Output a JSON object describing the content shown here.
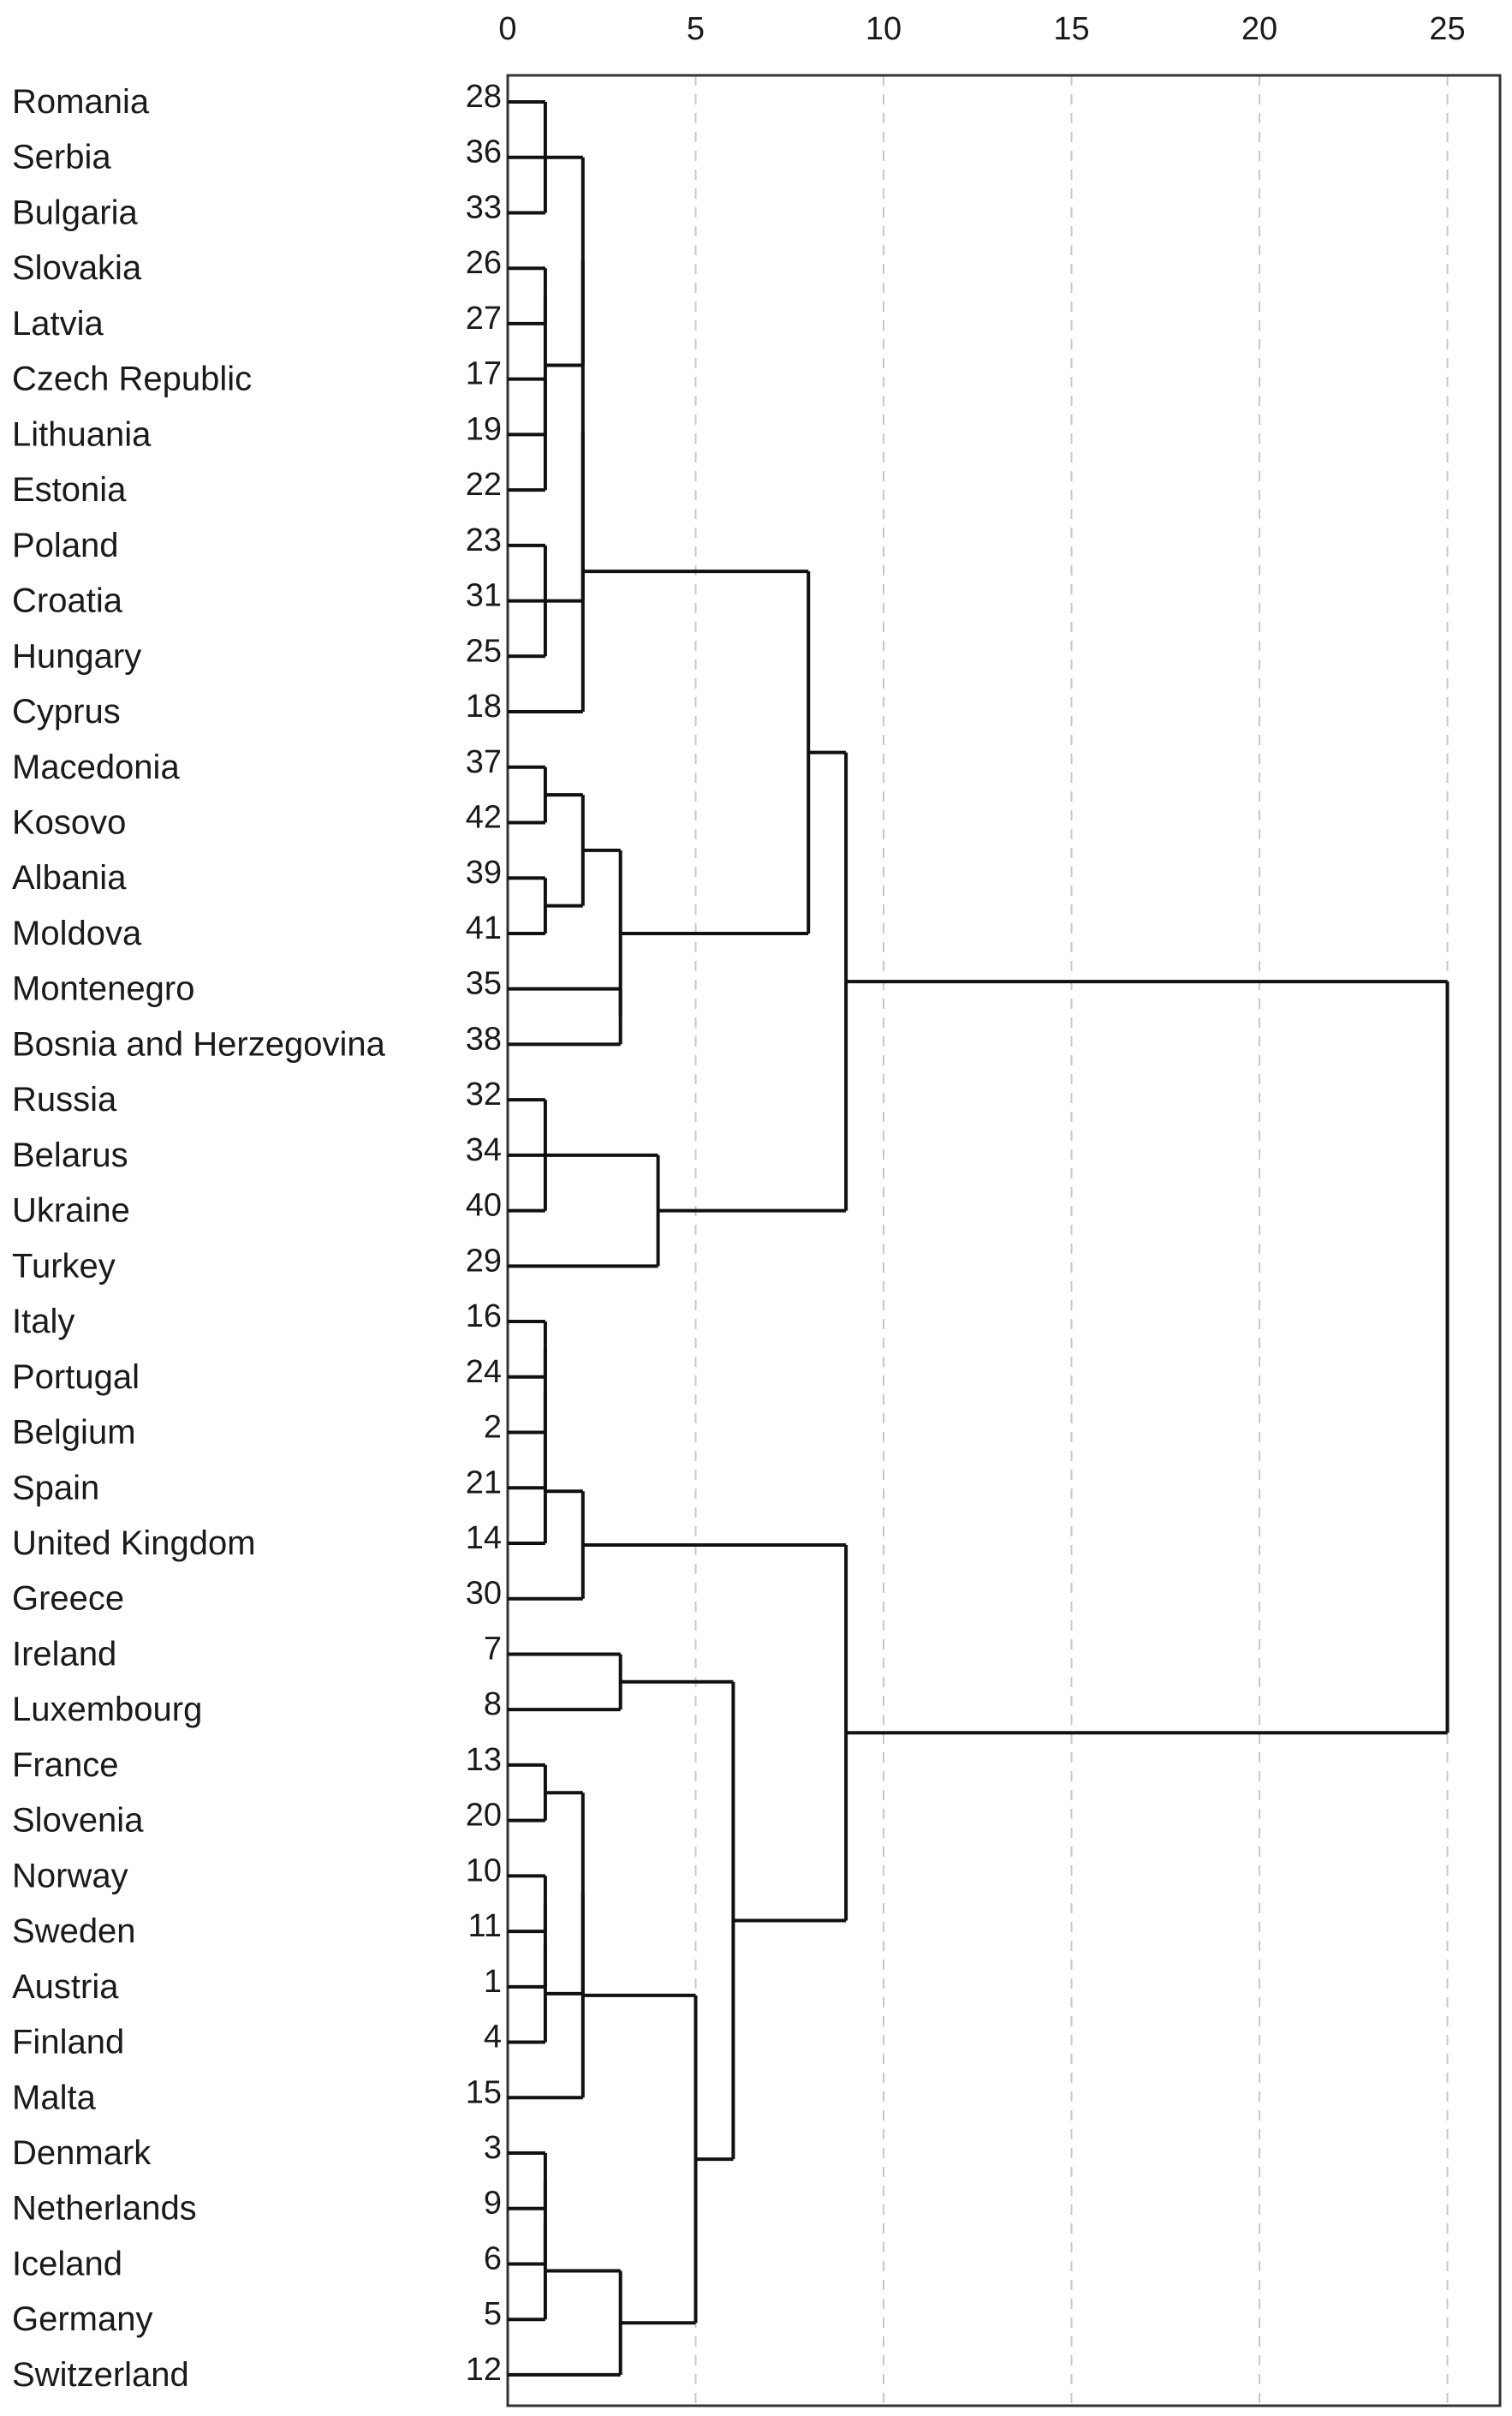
{
  "chart_data": {
    "type": "dendrogram",
    "title": "",
    "xlabel": "",
    "ylabel": "",
    "xlim": [
      0,
      26.4
    ],
    "x_ticks": [
      0,
      5,
      10,
      15,
      20,
      25
    ],
    "grid": "vertical-dashed",
    "leaves": [
      {
        "label": "Romania",
        "case": "28"
      },
      {
        "label": "Serbia",
        "case": "36"
      },
      {
        "label": "Bulgaria",
        "case": "33"
      },
      {
        "label": "Slovakia",
        "case": "26"
      },
      {
        "label": "Latvia",
        "case": "27"
      },
      {
        "label": "Czech Republic",
        "case": "17"
      },
      {
        "label": "Lithuania",
        "case": "19"
      },
      {
        "label": "Estonia",
        "case": "22"
      },
      {
        "label": "Poland",
        "case": "23"
      },
      {
        "label": "Croatia",
        "case": "31"
      },
      {
        "label": "Hungary",
        "case": "25"
      },
      {
        "label": "Cyprus",
        "case": "18"
      },
      {
        "label": "Macedonia",
        "case": "37"
      },
      {
        "label": "Kosovo",
        "case": "42"
      },
      {
        "label": "Albania",
        "case": "39"
      },
      {
        "label": "Moldova",
        "case": "41"
      },
      {
        "label": "Montenegro",
        "case": "35"
      },
      {
        "label": "Bosnia and Herzegovina",
        "case": "38"
      },
      {
        "label": "Russia",
        "case": "32"
      },
      {
        "label": "Belarus",
        "case": "34"
      },
      {
        "label": "Ukraine",
        "case": "40"
      },
      {
        "label": "Turkey",
        "case": "29"
      },
      {
        "label": "Italy",
        "case": "16"
      },
      {
        "label": "Portugal",
        "case": "24"
      },
      {
        "label": "Belgium",
        "case": "2"
      },
      {
        "label": "Spain",
        "case": "21"
      },
      {
        "label": "United Kingdom",
        "case": "14"
      },
      {
        "label": "Greece",
        "case": "30"
      },
      {
        "label": "Ireland",
        "case": "7"
      },
      {
        "label": "Luxembourg",
        "case": "8"
      },
      {
        "label": "France",
        "case": "13"
      },
      {
        "label": "Slovenia",
        "case": "20"
      },
      {
        "label": "Norway",
        "case": "10"
      },
      {
        "label": "Sweden",
        "case": "11"
      },
      {
        "label": "Austria",
        "case": "1"
      },
      {
        "label": "Finland",
        "case": "4"
      },
      {
        "label": "Malta",
        "case": "15"
      },
      {
        "label": "Denmark",
        "case": "3"
      },
      {
        "label": "Netherlands",
        "case": "9"
      },
      {
        "label": "Iceland",
        "case": "6"
      },
      {
        "label": "Germany",
        "case": "5"
      },
      {
        "label": "Switzerland",
        "case": "12"
      }
    ],
    "merges": [
      {
        "id": "m1",
        "children": [
          "Romania",
          "Bulgaria"
        ],
        "height": 1
      },
      {
        "id": "m2",
        "children": [
          "m1",
          "Serbia"
        ],
        "height": 1
      },
      {
        "id": "m3",
        "children": [
          "Slovakia",
          "Latvia"
        ],
        "height": 1
      },
      {
        "id": "m4",
        "children": [
          "Czech Republic",
          "Estonia"
        ],
        "height": 1
      },
      {
        "id": "m5",
        "children": [
          "m4",
          "Lithuania"
        ],
        "height": 1
      },
      {
        "id": "m6",
        "children": [
          "m3",
          "m5"
        ],
        "height": 1
      },
      {
        "id": "m7",
        "children": [
          "Poland",
          "Hungary"
        ],
        "height": 1
      },
      {
        "id": "m8",
        "children": [
          "m7",
          "Croatia"
        ],
        "height": 1
      },
      {
        "id": "m9",
        "children": [
          "m2",
          "m6"
        ],
        "height": 2
      },
      {
        "id": "m10",
        "children": [
          "m9",
          "m8"
        ],
        "height": 2
      },
      {
        "id": "m11",
        "children": [
          "m10",
          "Cyprus"
        ],
        "height": 2
      },
      {
        "id": "m12",
        "children": [
          "Macedonia",
          "Kosovo"
        ],
        "height": 1
      },
      {
        "id": "m13",
        "children": [
          "Albania",
          "Moldova"
        ],
        "height": 1
      },
      {
        "id": "m14",
        "children": [
          "m12",
          "m13"
        ],
        "height": 2
      },
      {
        "id": "m15",
        "children": [
          "Montenegro",
          "Bosnia and Herzegovina"
        ],
        "height": 3
      },
      {
        "id": "m16",
        "children": [
          "m14",
          "m15"
        ],
        "height": 3
      },
      {
        "id": "m17",
        "children": [
          "m11",
          "m16"
        ],
        "height": 8
      },
      {
        "id": "m18",
        "children": [
          "Russia",
          "Ukraine"
        ],
        "height": 1
      },
      {
        "id": "m19",
        "children": [
          "m18",
          "Belarus"
        ],
        "height": 1
      },
      {
        "id": "m20",
        "children": [
          "m19",
          "Turkey"
        ],
        "height": 4
      },
      {
        "id": "m21",
        "children": [
          "m17",
          "m20"
        ],
        "height": 9
      },
      {
        "id": "m22",
        "children": [
          "Italy",
          "Portugal"
        ],
        "height": 1
      },
      {
        "id": "m23",
        "children": [
          "m22",
          "Belgium"
        ],
        "height": 1
      },
      {
        "id": "m24",
        "children": [
          "m23",
          "Spain"
        ],
        "height": 1
      },
      {
        "id": "m25",
        "children": [
          "m24",
          "United Kingdom"
        ],
        "height": 1
      },
      {
        "id": "m26",
        "children": [
          "m25",
          "Greece"
        ],
        "height": 2
      },
      {
        "id": "m27",
        "children": [
          "Ireland",
          "Luxembourg"
        ],
        "height": 3
      },
      {
        "id": "m28",
        "children": [
          "France",
          "Slovenia"
        ],
        "height": 1
      },
      {
        "id": "m29",
        "children": [
          "Norway",
          "Sweden"
        ],
        "height": 1
      },
      {
        "id": "m30",
        "children": [
          "m29",
          "Austria"
        ],
        "height": 1
      },
      {
        "id": "m31",
        "children": [
          "m30",
          "Finland"
        ],
        "height": 1
      },
      {
        "id": "m32",
        "children": [
          "m28",
          "m31"
        ],
        "height": 2
      },
      {
        "id": "m33",
        "children": [
          "m32",
          "Malta"
        ],
        "height": 2
      },
      {
        "id": "m34",
        "children": [
          "Denmark",
          "Netherlands"
        ],
        "height": 1
      },
      {
        "id": "m35",
        "children": [
          "m34",
          "Iceland"
        ],
        "height": 1
      },
      {
        "id": "m36",
        "children": [
          "m35",
          "Germany"
        ],
        "height": 1
      },
      {
        "id": "m37",
        "children": [
          "m36",
          "Switzerland"
        ],
        "height": 3
      },
      {
        "id": "m38",
        "children": [
          "m33",
          "m37"
        ],
        "height": 5
      },
      {
        "id": "m39",
        "children": [
          "m27",
          "m38"
        ],
        "height": 6
      },
      {
        "id": "m40",
        "children": [
          "m26",
          "m39"
        ],
        "height": 9
      },
      {
        "id": "m41",
        "children": [
          "m21",
          "m40"
        ],
        "height": 25
      }
    ]
  }
}
